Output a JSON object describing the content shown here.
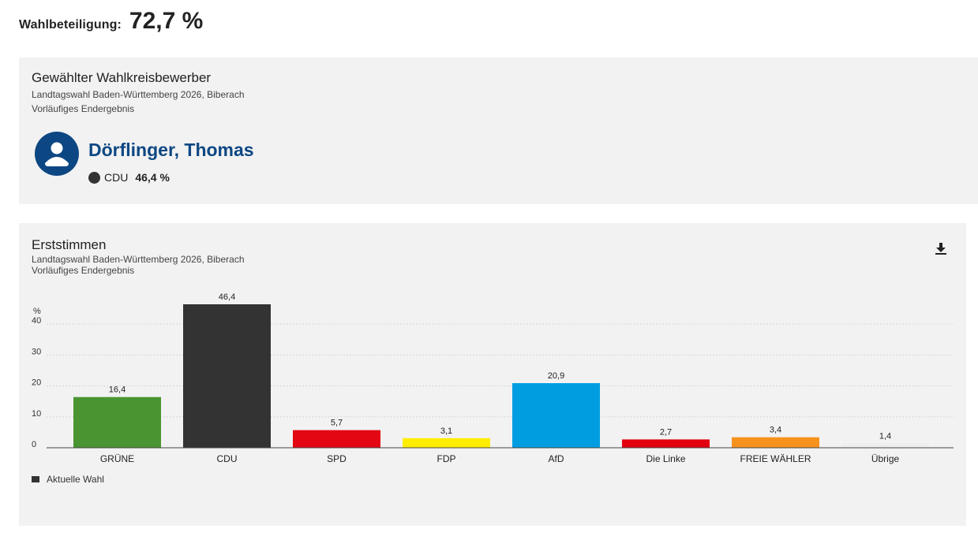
{
  "turnout": {
    "label": "Wahlbeteiligung:",
    "value": "72,7 %"
  },
  "winner": {
    "title": "Gewählter Wahlkreisbewerber",
    "subtitle": "Landtagswahl Baden-Württemberg 2026, Biberach",
    "status": "Vorläufiges Endergebnis",
    "name": "Dörflinger, Thomas",
    "party": "CDU",
    "party_color": "#333333",
    "percent": "46,4 %",
    "avatar_icon": "person-avatar-icon",
    "avatar_color": "#0d4783"
  },
  "chart_card": {
    "title": "Erststimmen",
    "subtitle": "Landtagswahl Baden-Württemberg 2026, Biberach",
    "status": "Vorläufiges Endergebnis",
    "download_icon": "download-icon"
  },
  "chart_data": {
    "type": "bar",
    "title": "Erststimmen",
    "ylabel": "%",
    "ylim": [
      0,
      46.4
    ],
    "yticks": [
      "0",
      "10",
      "20",
      "30",
      "40"
    ],
    "categories": [
      "GRÜNE",
      "CDU",
      "SPD",
      "FDP",
      "AfD",
      "Die Linke",
      "FREIE WÄHLER",
      "Übrige"
    ],
    "series": [
      {
        "name": "Aktuelle Wahl",
        "values": [
          16.4,
          46.4,
          5.7,
          3.1,
          20.9,
          2.7,
          3.4,
          1.4
        ],
        "labels": [
          "16,4",
          "46,4",
          "5,7",
          "3,1",
          "20,9",
          "2,7",
          "3,4",
          "1,4"
        ]
      }
    ],
    "colors": [
      "#4a9531",
      "#333333",
      "#e30613",
      "#ffed00",
      "#009ee0",
      "#e3000f",
      "#f7931d",
      "#eeeeee"
    ],
    "grid": true,
    "legend_position": "bottom-left"
  }
}
